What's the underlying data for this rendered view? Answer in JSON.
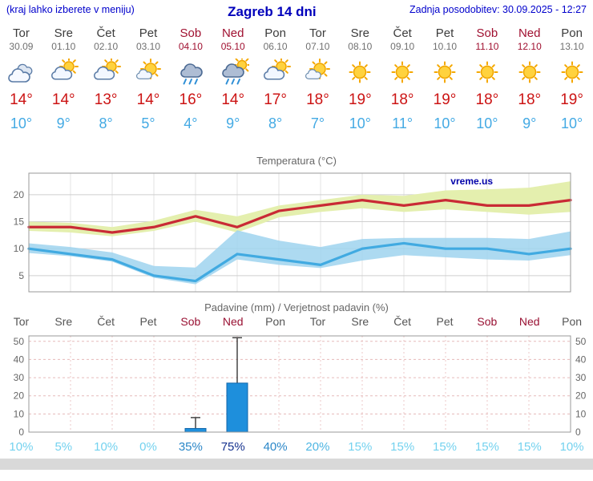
{
  "header": {
    "menu_note": "(kraj lahko izberete v meniju)",
    "title": "Zagreb 14 dni",
    "last_update": "Zadnja posodobitev: 30.09.2025 - 12:27"
  },
  "colors": {
    "blue_text": "#0000cc",
    "weekend_text": "#a01030",
    "tmax_text": "#cc1414",
    "tmin_text": "#44aae4",
    "tmax_line": "#c92a35",
    "tmax_band": "#e4efae",
    "tmin_line": "#41aae1",
    "tmin_band": "#9fd3ef",
    "bar_fill": "#1e8fdc",
    "bar_stroke": "#1166aa"
  },
  "forecast": {
    "days": [
      {
        "name": "Tor",
        "date": "30.09",
        "weekend": false,
        "icon": "cloudy",
        "tmax": "14°",
        "tmin": "10°"
      },
      {
        "name": "Sre",
        "date": "01.10",
        "weekend": false,
        "icon": "partly-cloudy",
        "tmax": "14°",
        "tmin": "9°"
      },
      {
        "name": "Čet",
        "date": "02.10",
        "weekend": false,
        "icon": "partly-cloudy",
        "tmax": "13°",
        "tmin": "8°"
      },
      {
        "name": "Pet",
        "date": "03.10",
        "weekend": false,
        "icon": "mostly-sunny",
        "tmax": "14°",
        "tmin": "5°"
      },
      {
        "name": "Sob",
        "date": "04.10",
        "weekend": true,
        "icon": "rain",
        "tmax": "16°",
        "tmin": "4°"
      },
      {
        "name": "Ned",
        "date": "05.10",
        "weekend": true,
        "icon": "sun-rain",
        "tmax": "14°",
        "tmin": "9°"
      },
      {
        "name": "Pon",
        "date": "06.10",
        "weekend": false,
        "icon": "partly-cloudy",
        "tmax": "17°",
        "tmin": "8°"
      },
      {
        "name": "Tor",
        "date": "07.10",
        "weekend": false,
        "icon": "mostly-sunny",
        "tmax": "18°",
        "tmin": "7°"
      },
      {
        "name": "Sre",
        "date": "08.10",
        "weekend": false,
        "icon": "sunny",
        "tmax": "19°",
        "tmin": "10°"
      },
      {
        "name": "Čet",
        "date": "09.10",
        "weekend": false,
        "icon": "sunny",
        "tmax": "18°",
        "tmin": "11°"
      },
      {
        "name": "Pet",
        "date": "10.10",
        "weekend": false,
        "icon": "sunny",
        "tmax": "19°",
        "tmin": "10°"
      },
      {
        "name": "Sob",
        "date": "11.10",
        "weekend": true,
        "icon": "sunny",
        "tmax": "18°",
        "tmin": "10°"
      },
      {
        "name": "Ned",
        "date": "12.10",
        "weekend": true,
        "icon": "sunny",
        "tmax": "18°",
        "tmin": "9°"
      },
      {
        "name": "Pon",
        "date": "13.10",
        "weekend": false,
        "icon": "sunny",
        "tmax": "19°",
        "tmin": "10°"
      }
    ]
  },
  "chart_data": [
    {
      "type": "area",
      "title": "Temperatura (°C)",
      "watermark": "vreme.us",
      "x_labels": [
        "Tor",
        "Sre",
        "Čet",
        "Pet",
        "Sob",
        "Ned",
        "Pon",
        "Tor",
        "Sre",
        "Čet",
        "Pet",
        "Sob",
        "Ned",
        "Pon"
      ],
      "ylim": [
        2,
        24
      ],
      "yticks": [
        5,
        10,
        15,
        20
      ],
      "series": [
        {
          "name": "tmax",
          "values": [
            14,
            14,
            13,
            14,
            16,
            14,
            17,
            18,
            19,
            18,
            19,
            18,
            18,
            19
          ]
        },
        {
          "name": "tmax_band_upper",
          "values": [
            15,
            14.8,
            14,
            15.2,
            17.2,
            16,
            18,
            19,
            20,
            19.8,
            20.8,
            21,
            21.3,
            22.5
          ]
        },
        {
          "name": "tmax_band_lower",
          "values": [
            13.3,
            13,
            12.3,
            13.3,
            15,
            13,
            15.8,
            16.8,
            17.5,
            16.8,
            17.3,
            16.8,
            16.3,
            16.8
          ]
        },
        {
          "name": "tmin",
          "values": [
            10,
            9,
            8,
            5,
            4,
            9,
            8,
            7,
            10,
            11,
            10,
            10,
            9,
            10
          ]
        },
        {
          "name": "tmin_band_upper",
          "values": [
            11,
            10.3,
            9.3,
            6.8,
            6.5,
            13.4,
            11.5,
            10.3,
            11.8,
            12,
            12,
            12,
            11.8,
            13.2
          ]
        },
        {
          "name": "tmin_band_lower",
          "values": [
            9.2,
            8.6,
            7.6,
            4.6,
            3.4,
            8,
            7,
            6.4,
            7.8,
            8.8,
            8.4,
            8,
            7.8,
            8.8
          ]
        }
      ]
    },
    {
      "type": "bar",
      "title": "Padavine (mm) / Verjetnost padavin (%)",
      "categories": [
        "Tor",
        "Sre",
        "Čet",
        "Pet",
        "Sob",
        "Ned",
        "Pon",
        "Tor",
        "Sre",
        "Čet",
        "Pet",
        "Sob",
        "Ned",
        "Pon"
      ],
      "weekend_indices": [
        4,
        5,
        11,
        12
      ],
      "values": [
        0,
        0,
        0,
        0,
        2,
        27,
        0,
        0,
        0,
        0,
        0,
        0,
        0,
        0
      ],
      "whisker_high": [
        0,
        0,
        0,
        0,
        8,
        52,
        0,
        0,
        0,
        0,
        0,
        0,
        0,
        0
      ],
      "probabilities": [
        "10%",
        "5%",
        "10%",
        "0%",
        "35%",
        "75%",
        "40%",
        "20%",
        "15%",
        "15%",
        "15%",
        "15%",
        "15%",
        "10%"
      ],
      "prob_values": [
        10,
        5,
        10,
        0,
        35,
        75,
        40,
        20,
        15,
        15,
        15,
        15,
        15,
        10
      ],
      "ylim": [
        0,
        53
      ],
      "yticks": [
        0,
        10,
        20,
        30,
        40,
        50
      ]
    }
  ]
}
